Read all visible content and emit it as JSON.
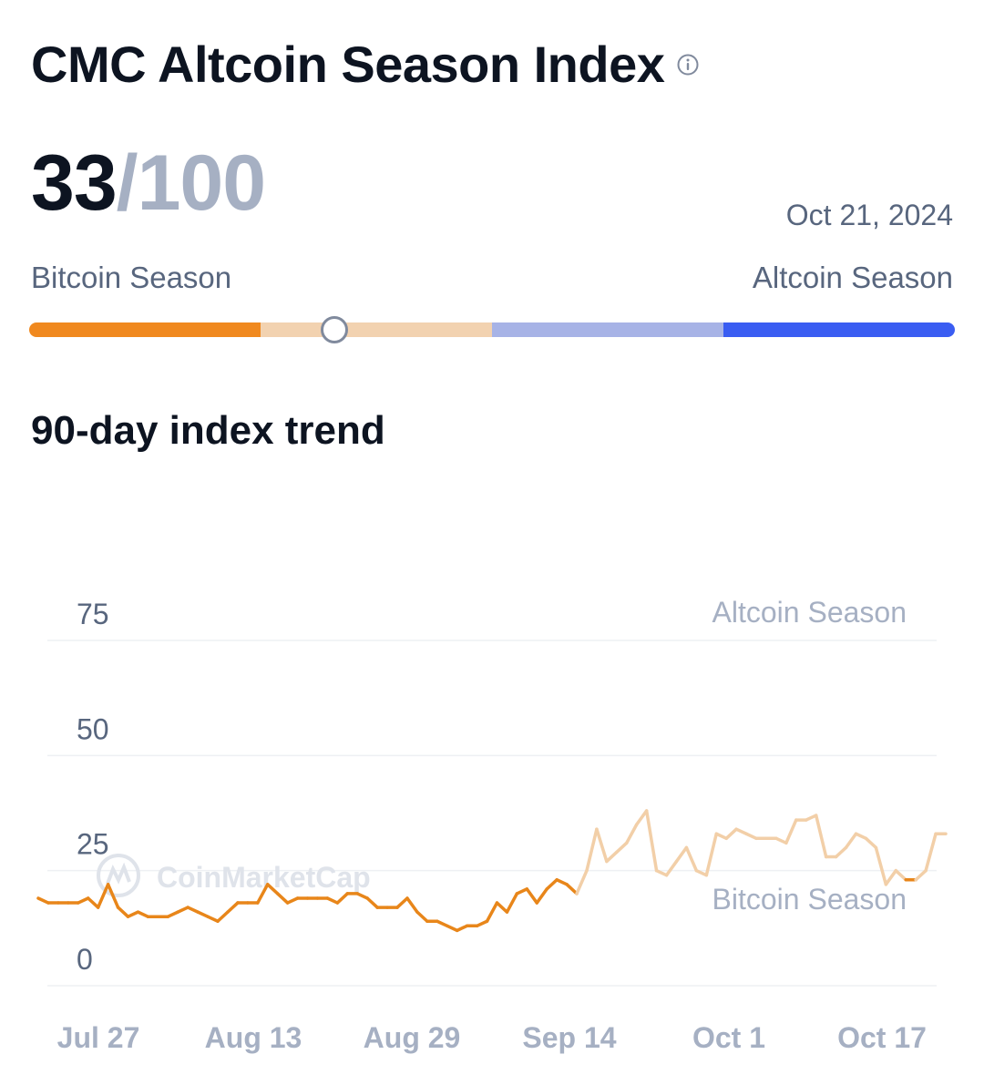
{
  "header": {
    "title": "CMC Altcoin Season Index",
    "info_icon": "info-circle-icon"
  },
  "index": {
    "value": "33",
    "max": "/100",
    "date": "Oct 21, 2024"
  },
  "gauge": {
    "left_label": "Bitcoin Season",
    "right_label": "Altcoin Season",
    "level": 33,
    "colors": [
      "#f0891f",
      "#f2d2b0",
      "#a7b3e6",
      "#3a5df2"
    ]
  },
  "section": {
    "trend_title": "90-day index trend"
  },
  "watermark": "CoinMarketCap",
  "chart_data": {
    "type": "line",
    "x_tick_labels": [
      "Jul 27",
      "Aug 13",
      "Aug 29",
      "Sep 14",
      "Oct 1",
      "Oct 17"
    ],
    "y_ticks": [
      0,
      25,
      50,
      75
    ],
    "ylim": [
      0,
      75
    ],
    "zone_labels": {
      "upper": "Altcoin Season",
      "lower": "Bitcoin Season"
    },
    "colors": {
      "bitcoin_season": "#e8861a",
      "neutral": "#f2cfa8",
      "grid": "#eef0f3"
    },
    "series": [
      {
        "values": [
          19,
          18,
          18,
          18,
          18,
          19,
          17,
          22,
          17,
          15,
          16,
          15,
          15,
          15,
          16,
          17,
          16,
          15,
          14,
          16,
          18,
          18,
          18,
          22,
          20,
          18,
          19,
          19,
          19,
          19,
          18,
          20,
          20,
          19,
          17,
          17,
          17,
          19,
          16,
          14,
          14,
          13,
          12,
          13,
          13,
          14,
          18,
          16,
          20,
          21,
          18,
          21,
          23,
          22,
          20,
          25,
          34,
          27,
          29,
          31,
          35,
          38,
          25,
          24,
          27,
          30,
          25,
          24,
          33,
          32,
          34,
          33,
          32,
          32,
          32,
          31,
          36,
          36,
          37,
          28,
          28,
          30,
          33,
          32,
          30,
          22,
          25,
          23,
          23,
          25,
          33,
          33
        ]
      }
    ]
  }
}
